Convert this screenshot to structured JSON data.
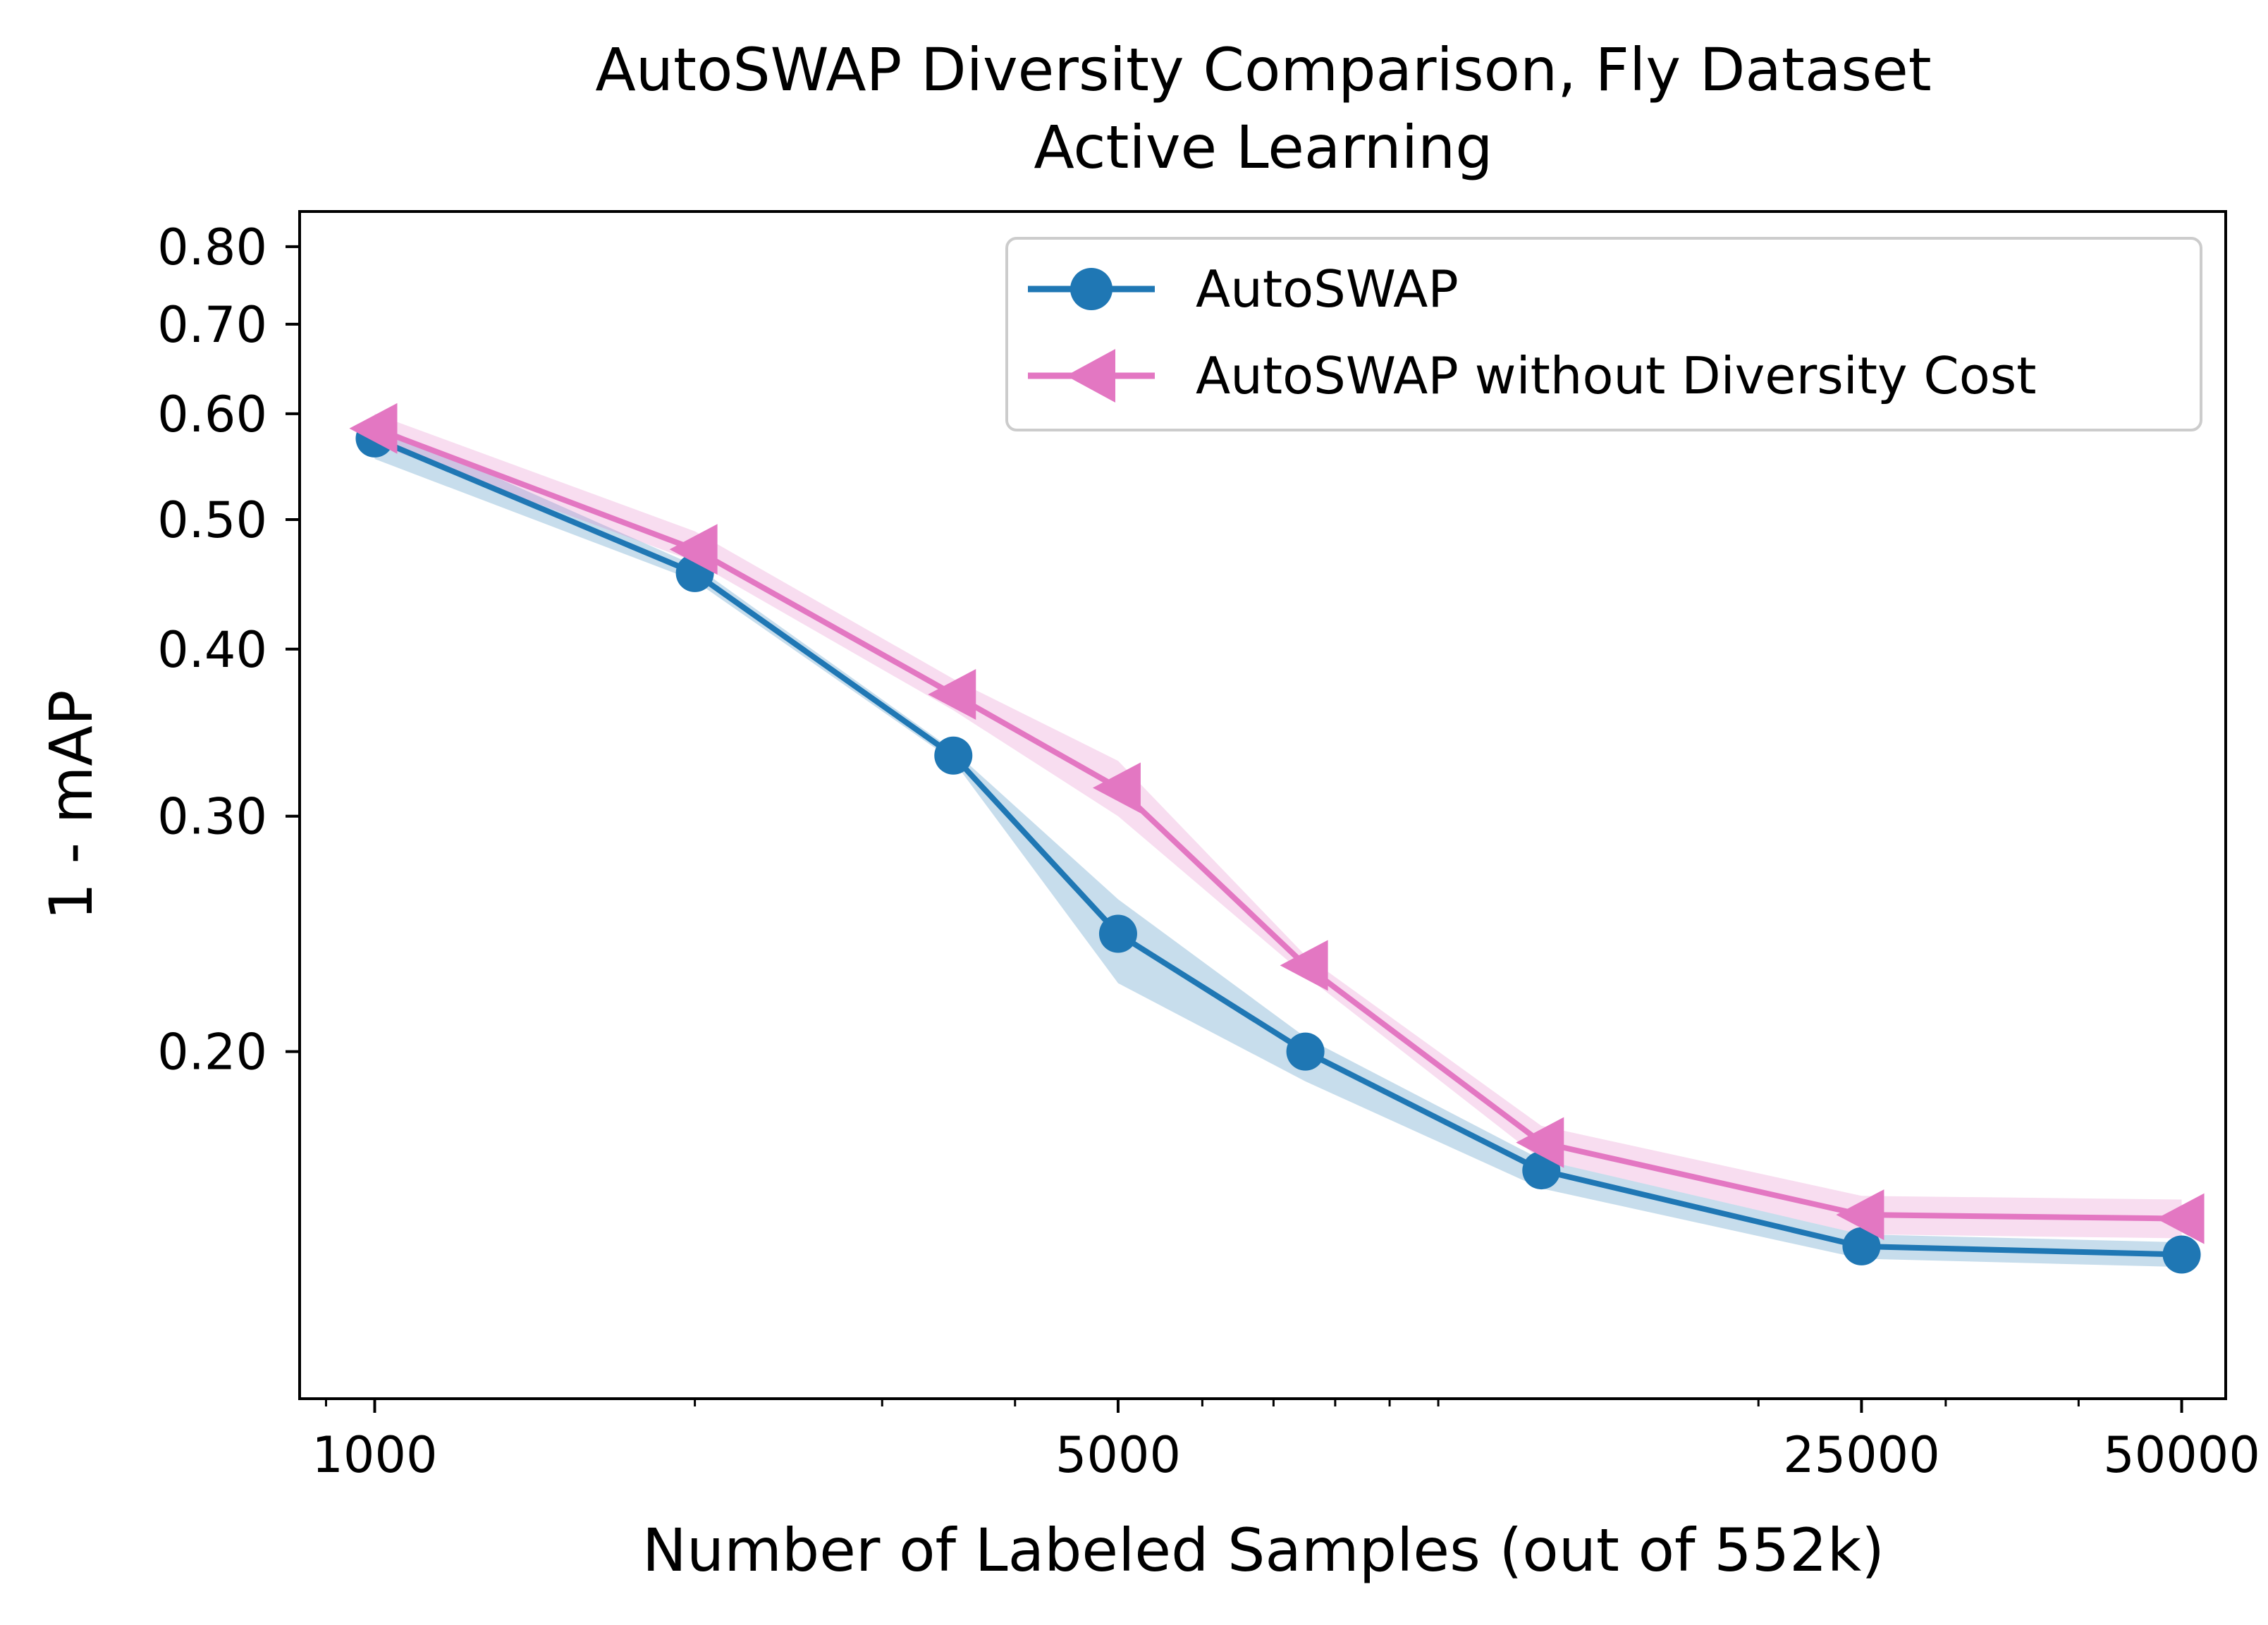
{
  "chart_data": {
    "type": "line",
    "title": "AutoSWAP Diversity Comparison, Fly Dataset",
    "subtitle": "Active Learning",
    "xlabel": "Number of Labeled Samples (out of 552k)",
    "ylabel": "1 - mAP",
    "x_scale": "log",
    "y_scale": "log",
    "xlim": [
      850,
      55000
    ],
    "ylim": [
      0.11,
      0.85
    ],
    "x_ticks": [
      1000,
      5000,
      25000,
      50000
    ],
    "x_tick_labels": [
      "1000",
      "5000",
      "25000",
      "50000"
    ],
    "y_ticks": [
      0.2,
      0.3,
      0.4,
      0.5,
      0.6,
      0.7,
      0.8
    ],
    "y_tick_labels": [
      "0.20",
      "0.30",
      "0.40",
      "0.50",
      "0.60",
      "0.70",
      "0.80"
    ],
    "x_minor_ticks": [
      900,
      2000,
      3000,
      4000,
      6000,
      7000,
      8000,
      9000,
      10000,
      20000,
      30000,
      40000
    ],
    "grid": false,
    "legend_position": "top-right",
    "x": [
      1000,
      2000,
      3500,
      5000,
      7500,
      12500,
      25000,
      50000
    ],
    "series": [
      {
        "name": "AutoSWAP",
        "color": "#1f77b4",
        "marker": "circle",
        "values": [
          0.575,
          0.456,
          0.333,
          0.245,
          0.2,
          0.163,
          0.143,
          0.141
        ],
        "band_lower": [
          0.555,
          0.45,
          0.33,
          0.225,
          0.19,
          0.158,
          0.14,
          0.138
        ],
        "band_upper": [
          0.59,
          0.462,
          0.336,
          0.26,
          0.205,
          0.166,
          0.146,
          0.144
        ]
      },
      {
        "name": "AutoSWAP without Diversity Cost",
        "color": "#e377c2",
        "marker": "triangle-left",
        "values": [
          0.585,
          0.475,
          0.37,
          0.315,
          0.232,
          0.171,
          0.151,
          0.15
        ],
        "band_lower": [
          0.57,
          0.465,
          0.36,
          0.3,
          0.228,
          0.166,
          0.146,
          0.145
        ],
        "band_upper": [
          0.6,
          0.49,
          0.38,
          0.33,
          0.236,
          0.176,
          0.156,
          0.155
        ]
      }
    ]
  }
}
